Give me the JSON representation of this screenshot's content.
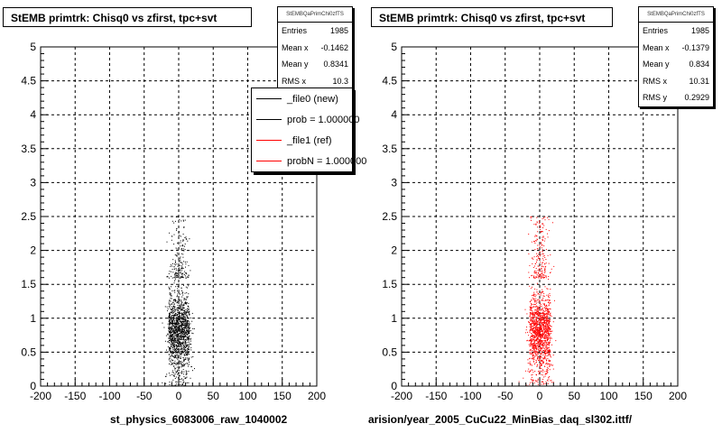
{
  "chart_data": [
    {
      "type": "scatter",
      "title": "StEMB primtrk: Chisq0 vs zfirst, tpc+svt",
      "xlabel": "st_physics_6083006_raw_1040002",
      "ylabel": "",
      "xlim": [
        -200,
        200
      ],
      "ylim": [
        0,
        5
      ],
      "x_ticks": [
        "-200",
        "-150",
        "-100",
        "-50",
        "0",
        "50",
        "100",
        "150",
        "200"
      ],
      "y_ticks": [
        "0",
        "0.5",
        "1",
        "1.5",
        "2",
        "2.5",
        "3",
        "3.5",
        "4",
        "4.5",
        "5"
      ],
      "grid": true,
      "marker_color": "#000000",
      "stats": {
        "name": "StEMBQaPrimChi0zfTS",
        "rows": [
          {
            "label": "Entries",
            "value": "1985"
          },
          {
            "label": "Mean x",
            "value": "-0.1462"
          },
          {
            "label": "Mean y",
            "value": "0.8341"
          },
          {
            "label": "RMS x",
            "value": "10.3"
          }
        ]
      },
      "legend": {
        "position": "top-right",
        "entries": [
          {
            "label": "_file0 (new)",
            "color": "#000000"
          },
          {
            "label": "prob = 1.000000",
            "color": "#000000"
          },
          {
            "label": "_file1 (ref)",
            "color": "#ff0000"
          },
          {
            "label": "probN = 1.000000",
            "color": "#ff0000"
          }
        ]
      },
      "distribution": {
        "entries": 1985,
        "mean_x": -0.1462,
        "mean_y": 0.8341,
        "rms_x": 10.3,
        "core_x": [
          -15,
          15
        ],
        "core_y": [
          0.3,
          1.6
        ],
        "sparse_y": [
          0,
          2.5
        ]
      }
    },
    {
      "type": "scatter",
      "title": "StEMB primtrk: Chisq0 vs zfirst, tpc+svt",
      "xlabel": "arision/year_2005_CuCu22_MinBias_daq_sl302.ittf/",
      "ylabel": "",
      "xlim": [
        -200,
        200
      ],
      "ylim": [
        0,
        5
      ],
      "x_ticks": [
        "-200",
        "-150",
        "-100",
        "-50",
        "0",
        "50",
        "100",
        "150",
        "200"
      ],
      "y_ticks": [
        "0",
        "0.5",
        "1",
        "1.5",
        "2",
        "2.5",
        "3",
        "3.5",
        "4",
        "4.5",
        "5"
      ],
      "grid": true,
      "marker_color": "#ff0000",
      "stats": {
        "name": "StEMBQaPrimChi0zfTS",
        "rows": [
          {
            "label": "Entries",
            "value": "1985"
          },
          {
            "label": "Mean x",
            "value": "-0.1379"
          },
          {
            "label": "Mean y",
            "value": "0.834"
          },
          {
            "label": "RMS x",
            "value": "10.31"
          },
          {
            "label": "RMS y",
            "value": "0.2929"
          }
        ]
      },
      "distribution": {
        "entries": 1985,
        "mean_x": -0.1379,
        "mean_y": 0.834,
        "rms_x": 10.31,
        "core_x": [
          -15,
          15
        ],
        "core_y": [
          0.3,
          1.6
        ],
        "sparse_y": [
          0,
          2.5
        ]
      }
    }
  ]
}
